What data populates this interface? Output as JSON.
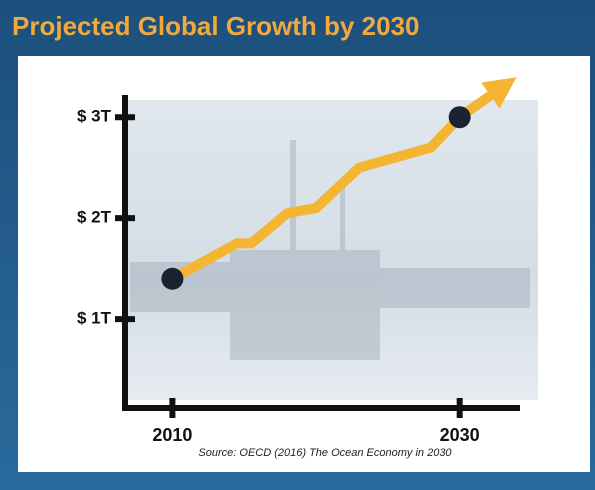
{
  "chart_data": {
    "type": "line",
    "title": "Projected Global Growth by 2030",
    "source": "Source: OECD (2016) The Ocean Economy in 2030",
    "x": [
      2010,
      2014.5,
      2015.5,
      2018,
      2020,
      2023,
      2028,
      2030,
      2032.5
    ],
    "series": [
      {
        "color": "#f4b533",
        "values": [
          1.4,
          1.75,
          1.75,
          2.05,
          2.1,
          2.5,
          2.7,
          3.0,
          3.25
        ]
      }
    ],
    "markers": {
      "x": [
        2010,
        2030
      ],
      "values": [
        1.4,
        3.0
      ],
      "color": "#1b2230"
    },
    "xlim": [
      2006.7,
      2034.2
    ],
    "xticks": [
      2010,
      2030
    ],
    "ylim": [
      0.12,
      3.22
    ],
    "yticks": [
      {
        "value": 1,
        "label": "$ 1T"
      },
      {
        "value": 2,
        "label": "$ 2T"
      },
      {
        "value": 3,
        "label": "$ 3T"
      }
    ]
  }
}
